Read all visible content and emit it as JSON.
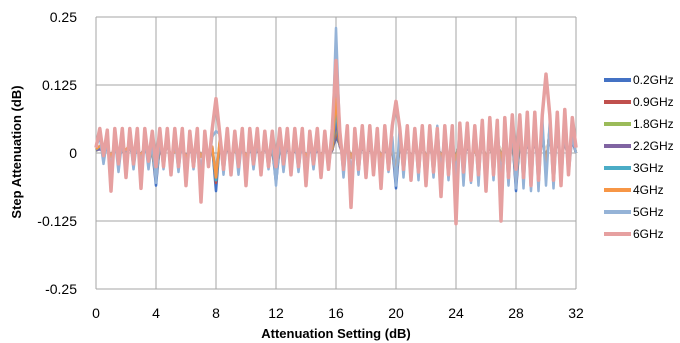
{
  "chart_data": {
    "type": "line",
    "title": "",
    "xlabel": "Attenuation Setting (dB)",
    "ylabel": "Step Attenuation (dB)",
    "xlim": [
      0,
      32
    ],
    "ylim": [
      -0.25,
      0.25
    ],
    "xticks": [
      0,
      4,
      8,
      12,
      16,
      20,
      24,
      28,
      32
    ],
    "xtick_labels": [
      "0",
      "4",
      "8",
      "12",
      "16",
      "20",
      "24",
      "28",
      "32"
    ],
    "yticks": [
      -0.25,
      -0.125,
      0,
      0.125,
      0.25
    ],
    "ytick_labels": [
      "-0.25",
      "-0.125",
      "0",
      "0.125",
      "0.25"
    ],
    "grid": true,
    "legend_position": "right",
    "x_step": 0.25,
    "series": [
      {
        "name": "0.2GHz",
        "color": "#4472C4",
        "values": [
          0.005,
          0.01,
          0.002,
          0.008,
          -0.005,
          0.01,
          -0.008,
          0.005,
          0.003,
          0.012,
          -0.006,
          0.004,
          -0.002,
          0.01,
          -0.005,
          0.003,
          -0.06,
          0.015,
          -0.005,
          0.02,
          -0.01,
          0.004,
          -0.005,
          0.01,
          -0.008,
          0.006,
          -0.003,
          0.008,
          -0.004,
          0.006,
          -0.002,
          0.009,
          -0.07,
          0.02,
          -0.01,
          0.01,
          -0.005,
          0.004,
          -0.006,
          0.01,
          -0.005,
          0.008,
          -0.004,
          0.006,
          -0.003,
          0.01,
          -0.005,
          0.007,
          -0.055,
          0.012,
          -0.006,
          0.01,
          -0.004,
          0.005,
          -0.006,
          0.009,
          -0.004,
          0.006,
          -0.003,
          0.008,
          -0.005,
          0.01,
          -0.004,
          0.006,
          0.03,
          0.015,
          -0.008,
          0.012,
          -0.006,
          0.008,
          -0.009,
          0.012,
          -0.007,
          0.01,
          -0.006,
          0.012,
          -0.005,
          0.008,
          -0.004,
          0.01,
          -0.065,
          0.02,
          -0.008,
          0.015,
          -0.01,
          0.012,
          -0.012,
          0.015,
          -0.008,
          0.01,
          -0.009,
          0.014,
          -0.006,
          0.012,
          -0.007,
          0.01,
          -0.01,
          0.02,
          -0.012,
          0.018,
          -0.015,
          0.01,
          -0.02,
          0.025,
          -0.015,
          0.02,
          -0.018,
          0.03,
          -0.012,
          0.025,
          -0.02,
          0.03,
          -0.07,
          0.025,
          -0.02,
          0.03,
          -0.025,
          0.035,
          -0.03,
          0.04,
          -0.025,
          0.045,
          -0.035,
          0.04,
          -0.03,
          0.035,
          -0.02,
          0.03,
          0.0
        ]
      },
      {
        "name": "0.9GHz",
        "color": "#C0504D",
        "values": [
          0.006,
          0.008,
          0.003,
          0.007,
          -0.004,
          0.009,
          -0.007,
          0.006,
          0.004,
          0.01,
          -0.005,
          0.005,
          -0.003,
          0.009,
          -0.006,
          0.004,
          -0.05,
          0.012,
          -0.006,
          0.018,
          -0.009,
          0.005,
          -0.004,
          0.009,
          -0.007,
          0.005,
          -0.004,
          0.007,
          -0.005,
          0.005,
          -0.003,
          0.008,
          -0.055,
          0.018,
          -0.009,
          0.009,
          -0.006,
          0.005,
          -0.005,
          0.009,
          -0.004,
          0.007,
          -0.005,
          0.005,
          -0.004,
          0.009,
          -0.004,
          0.006,
          -0.045,
          0.011,
          -0.005,
          0.009,
          -0.005,
          0.004,
          -0.005,
          0.008,
          -0.005,
          0.005,
          -0.004,
          0.007,
          -0.004,
          0.009,
          -0.005,
          0.005,
          0.04,
          0.014,
          -0.007,
          0.011,
          -0.005,
          0.007,
          -0.008,
          0.011,
          -0.006,
          0.009,
          -0.005,
          0.011,
          -0.004,
          0.007,
          -0.005,
          0.009,
          -0.05,
          0.018,
          -0.007,
          0.014,
          -0.009,
          0.011,
          -0.011,
          0.014,
          -0.007,
          0.009,
          -0.008,
          0.013,
          -0.005,
          0.011,
          -0.006,
          0.009,
          -0.009,
          0.018,
          -0.011,
          0.016,
          -0.014,
          0.009,
          -0.018,
          0.022,
          -0.014,
          0.018,
          -0.016,
          0.027,
          -0.011,
          0.022,
          -0.018,
          0.027,
          -0.06,
          0.022,
          -0.018,
          0.027,
          -0.022,
          0.031,
          -0.027,
          0.036,
          -0.022,
          0.04,
          -0.031,
          0.036,
          -0.027,
          0.031,
          -0.018,
          0.027,
          0.0
        ]
      },
      {
        "name": "1.8GHz",
        "color": "#9BBB59",
        "values": [
          0.004,
          0.009,
          0.002,
          0.006,
          -0.005,
          0.008,
          -0.006,
          0.005,
          0.003,
          0.011,
          -0.004,
          0.004,
          -0.004,
          0.008,
          -0.005,
          0.003,
          -0.045,
          0.01,
          -0.005,
          0.015,
          -0.008,
          0.004,
          -0.005,
          0.008,
          -0.006,
          0.006,
          -0.003,
          0.006,
          -0.004,
          0.006,
          -0.004,
          0.007,
          -0.05,
          0.016,
          -0.008,
          0.008,
          -0.005,
          0.004,
          -0.006,
          0.008,
          -0.005,
          0.006,
          -0.004,
          0.006,
          -0.003,
          0.008,
          -0.005,
          0.005,
          -0.04,
          0.01,
          -0.006,
          0.008,
          -0.004,
          0.005,
          -0.004,
          0.007,
          -0.004,
          0.006,
          -0.005,
          0.006,
          -0.005,
          0.008,
          -0.004,
          0.006,
          0.05,
          0.013,
          -0.006,
          0.01,
          -0.006,
          0.006,
          -0.007,
          0.01,
          -0.005,
          0.008,
          -0.006,
          0.01,
          -0.005,
          0.006,
          -0.004,
          0.008,
          -0.045,
          0.016,
          -0.006,
          0.013,
          -0.008,
          0.01,
          -0.01,
          0.013,
          -0.006,
          0.008,
          -0.007,
          0.012,
          -0.006,
          0.01,
          -0.005,
          0.008,
          -0.008,
          0.016,
          -0.01,
          0.015,
          -0.013,
          0.008,
          -0.016,
          0.02,
          -0.013,
          0.016,
          -0.015,
          0.024,
          -0.01,
          0.02,
          -0.016,
          0.024,
          -0.05,
          0.02,
          -0.016,
          0.024,
          -0.02,
          0.028,
          -0.024,
          0.032,
          -0.02,
          0.036,
          -0.028,
          0.032,
          -0.024,
          0.028,
          -0.016,
          0.024,
          0.0
        ]
      },
      {
        "name": "2.2GHz",
        "color": "#8064A2",
        "values": [
          0.005,
          0.007,
          0.003,
          0.006,
          -0.004,
          0.007,
          -0.005,
          0.004,
          0.004,
          0.009,
          -0.005,
          0.003,
          -0.003,
          0.007,
          -0.004,
          0.004,
          -0.04,
          0.009,
          -0.004,
          0.014,
          -0.007,
          0.005,
          -0.004,
          0.007,
          -0.005,
          0.005,
          -0.004,
          0.005,
          -0.003,
          0.005,
          -0.003,
          0.006,
          -0.045,
          0.014,
          -0.007,
          0.007,
          -0.004,
          0.005,
          -0.005,
          0.007,
          -0.004,
          0.005,
          -0.003,
          0.005,
          -0.004,
          0.007,
          -0.004,
          0.004,
          -0.035,
          0.009,
          -0.005,
          0.007,
          -0.003,
          0.004,
          -0.005,
          0.006,
          -0.003,
          0.005,
          -0.004,
          0.005,
          -0.004,
          0.007,
          -0.003,
          0.005,
          0.06,
          0.012,
          -0.005,
          0.009,
          -0.005,
          0.005,
          -0.006,
          0.009,
          -0.004,
          0.007,
          -0.005,
          0.009,
          -0.004,
          0.005,
          -0.003,
          0.007,
          -0.04,
          0.014,
          -0.005,
          0.012,
          -0.007,
          0.009,
          -0.009,
          0.012,
          -0.005,
          0.007,
          -0.006,
          0.011,
          -0.005,
          0.009,
          -0.004,
          0.007,
          -0.007,
          0.014,
          -0.009,
          0.013,
          -0.012,
          0.007,
          -0.014,
          0.018,
          -0.012,
          0.014,
          -0.013,
          0.022,
          -0.009,
          0.018,
          -0.014,
          0.022,
          -0.045,
          0.018,
          -0.014,
          0.022,
          -0.018,
          0.025,
          -0.022,
          0.029,
          -0.018,
          0.032,
          -0.025,
          0.029,
          -0.022,
          0.025,
          -0.014,
          0.022,
          0.0
        ]
      },
      {
        "name": "3GHz",
        "color": "#4BACC6",
        "values": [
          0.006,
          0.012,
          0.004,
          0.01,
          -0.006,
          0.012,
          -0.009,
          0.007,
          0.005,
          0.014,
          -0.007,
          0.006,
          -0.004,
          0.012,
          -0.007,
          0.005,
          -0.045,
          0.018,
          -0.007,
          0.022,
          -0.012,
          0.006,
          -0.007,
          0.012,
          -0.009,
          0.008,
          -0.005,
          0.01,
          -0.006,
          0.008,
          -0.004,
          0.011,
          -0.05,
          0.022,
          -0.012,
          0.012,
          -0.007,
          0.006,
          -0.008,
          0.012,
          -0.007,
          0.01,
          -0.006,
          0.008,
          -0.005,
          0.012,
          -0.007,
          0.009,
          -0.04,
          0.014,
          -0.008,
          0.012,
          -0.006,
          0.007,
          -0.008,
          0.011,
          -0.006,
          0.008,
          -0.005,
          0.01,
          -0.007,
          0.012,
          -0.006,
          0.008,
          0.08,
          0.018,
          -0.01,
          0.014,
          -0.008,
          0.01,
          -0.011,
          0.014,
          -0.009,
          0.012,
          -0.008,
          0.014,
          -0.007,
          0.01,
          -0.006,
          0.012,
          -0.045,
          0.022,
          -0.01,
          0.018,
          -0.012,
          0.014,
          -0.014,
          0.018,
          -0.01,
          0.012,
          -0.011,
          0.016,
          -0.008,
          0.014,
          -0.009,
          0.012,
          -0.012,
          0.022,
          -0.014,
          0.02,
          -0.018,
          0.012,
          -0.022,
          0.028,
          -0.018,
          0.022,
          -0.02,
          0.032,
          -0.014,
          0.028,
          -0.022,
          0.032,
          -0.05,
          0.028,
          -0.022,
          0.032,
          -0.028,
          0.038,
          -0.032,
          0.042,
          -0.028,
          0.048,
          -0.038,
          0.042,
          -0.032,
          0.038,
          -0.022,
          0.032,
          0.0
        ]
      },
      {
        "name": "4GHz",
        "color": "#F79646",
        "values": [
          0.007,
          0.013,
          0.005,
          0.011,
          -0.007,
          0.013,
          -0.01,
          0.008,
          0.006,
          0.015,
          -0.008,
          0.007,
          -0.005,
          0.013,
          -0.008,
          0.006,
          -0.04,
          0.019,
          -0.008,
          0.024,
          -0.013,
          0.007,
          -0.008,
          0.013,
          -0.01,
          0.009,
          -0.006,
          0.011,
          -0.007,
          0.009,
          -0.005,
          0.012,
          -0.045,
          0.024,
          -0.013,
          0.013,
          -0.008,
          0.007,
          -0.009,
          0.013,
          -0.008,
          0.011,
          -0.007,
          0.009,
          -0.006,
          0.013,
          -0.008,
          0.01,
          -0.035,
          0.015,
          -0.009,
          0.013,
          -0.007,
          0.008,
          -0.009,
          0.012,
          -0.007,
          0.009,
          -0.006,
          0.011,
          -0.008,
          0.013,
          -0.007,
          0.009,
          0.1,
          0.019,
          -0.011,
          0.015,
          -0.009,
          0.011,
          -0.012,
          0.015,
          -0.01,
          0.013,
          -0.009,
          0.015,
          -0.008,
          0.011,
          -0.007,
          0.013,
          -0.04,
          0.024,
          -0.011,
          0.019,
          -0.013,
          0.015,
          -0.015,
          0.019,
          -0.011,
          0.013,
          -0.012,
          0.017,
          -0.009,
          0.015,
          -0.01,
          0.013,
          -0.013,
          0.024,
          -0.015,
          0.022,
          -0.019,
          0.013,
          -0.024,
          0.03,
          -0.019,
          0.024,
          -0.022,
          0.034,
          -0.015,
          0.03,
          -0.024,
          0.034,
          -0.045,
          0.03,
          -0.024,
          0.034,
          -0.03,
          0.04,
          -0.034,
          0.045,
          -0.03,
          0.05,
          -0.04,
          0.045,
          -0.034,
          0.04,
          -0.024,
          0.034,
          0.0
        ]
      },
      {
        "name": "5GHz",
        "color": "#95B3D7",
        "values": [
          0.012,
          0.03,
          -0.02,
          0.025,
          -0.03,
          0.028,
          -0.035,
          0.025,
          -0.02,
          0.03,
          -0.03,
          0.025,
          -0.025,
          0.028,
          -0.03,
          0.02,
          -0.055,
          0.032,
          -0.03,
          0.035,
          -0.04,
          0.028,
          -0.035,
          0.03,
          -0.035,
          0.028,
          -0.03,
          0.025,
          -0.035,
          0.028,
          -0.025,
          0.03,
          0.04,
          0.035,
          -0.04,
          0.03,
          -0.035,
          0.028,
          -0.04,
          0.03,
          -0.035,
          0.028,
          -0.03,
          0.025,
          -0.035,
          0.028,
          -0.03,
          0.025,
          -0.06,
          0.03,
          -0.035,
          0.028,
          -0.03,
          0.025,
          -0.035,
          0.028,
          -0.03,
          0.025,
          -0.03,
          0.028,
          -0.035,
          0.03,
          -0.03,
          0.025,
          0.23,
          0.04,
          -0.045,
          0.035,
          -0.04,
          0.03,
          -0.04,
          0.035,
          -0.04,
          0.03,
          -0.035,
          0.03,
          -0.04,
          0.035,
          -0.035,
          0.03,
          -0.06,
          0.05,
          -0.045,
          0.04,
          -0.05,
          0.045,
          -0.05,
          0.05,
          -0.045,
          0.04,
          -0.045,
          0.05,
          -0.04,
          0.045,
          -0.05,
          0.04,
          -0.055,
          0.055,
          -0.06,
          0.05,
          -0.055,
          0.05,
          -0.06,
          0.06,
          -0.055,
          0.055,
          -0.05,
          0.06,
          -0.055,
          0.05,
          -0.06,
          0.055,
          -0.065,
          0.06,
          -0.065,
          0.055,
          -0.07,
          0.06,
          -0.07,
          0.065,
          -0.06,
          0.06,
          -0.065,
          0.055,
          -0.06,
          0.05,
          -0.04,
          0.03,
          0.0
        ]
      },
      {
        "name": "6GHz",
        "color": "#E6A0A0",
        "values": [
          0.01,
          0.045,
          -0.005,
          0.042,
          -0.07,
          0.045,
          -0.02,
          0.045,
          -0.045,
          0.045,
          -0.02,
          0.045,
          -0.065,
          0.045,
          -0.015,
          0.04,
          -0.025,
          0.045,
          -0.025,
          0.045,
          -0.04,
          0.045,
          -0.025,
          0.045,
          -0.06,
          0.04,
          -0.025,
          0.045,
          -0.09,
          0.04,
          -0.025,
          0.045,
          0.1,
          0.035,
          -0.03,
          0.045,
          -0.04,
          0.04,
          -0.025,
          0.045,
          -0.06,
          0.045,
          -0.02,
          0.045,
          -0.04,
          0.04,
          -0.025,
          0.04,
          -0.025,
          0.045,
          -0.02,
          0.045,
          -0.04,
          0.045,
          -0.025,
          0.045,
          -0.06,
          0.04,
          -0.02,
          0.045,
          -0.045,
          0.04,
          -0.03,
          0.045,
          0.17,
          0.04,
          -0.03,
          0.05,
          -0.1,
          0.045,
          -0.03,
          0.05,
          -0.045,
          0.05,
          -0.04,
          0.045,
          -0.065,
          0.05,
          -0.03,
          0.05,
          0.095,
          0.045,
          -0.03,
          0.05,
          -0.05,
          0.045,
          -0.035,
          0.05,
          -0.06,
          0.05,
          -0.035,
          0.045,
          -0.08,
          0.05,
          -0.04,
          0.05,
          -0.13,
          0.055,
          -0.035,
          0.055,
          -0.05,
          0.05,
          -0.04,
          0.06,
          -0.07,
          0.065,
          -0.04,
          0.06,
          -0.125,
          0.065,
          -0.045,
          0.07,
          -0.03,
          0.07,
          -0.045,
          0.075,
          -0.06,
          0.075,
          -0.05,
          0.07,
          0.145,
          0.07,
          -0.05,
          0.075,
          -0.06,
          0.08,
          -0.04,
          0.065,
          0.01
        ]
      }
    ]
  }
}
